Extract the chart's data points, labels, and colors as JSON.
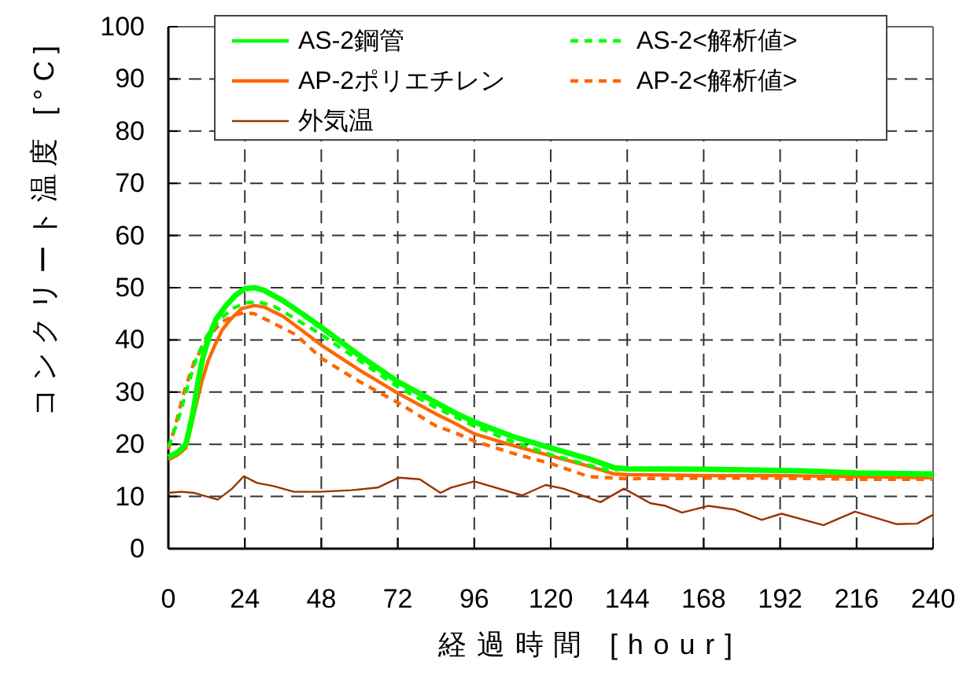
{
  "chart_data": {
    "type": "line",
    "xlabel": "経過時間 [hour]",
    "ylabel": "コンクリート温度 [°C]",
    "xlim": [
      0,
      240
    ],
    "xticks": [
      0,
      24,
      48,
      72,
      96,
      120,
      144,
      168,
      192,
      216,
      240
    ],
    "ylim": [
      0,
      100
    ],
    "yticks": [
      0,
      10,
      20,
      30,
      40,
      50,
      60,
      70,
      80,
      90,
      100
    ],
    "grid": true,
    "legend": "top",
    "series": [
      {
        "name": "AS-2鋼管",
        "color": "#00ff00",
        "line_style": "solid",
        "x": [
          0,
          3,
          5.5,
          7,
          8,
          9.6,
          11,
          13,
          15,
          18,
          21,
          24,
          27,
          30,
          36,
          42,
          48,
          60,
          72,
          84,
          90,
          96,
          108,
          120,
          132,
          140,
          144,
          168,
          192,
          204,
          216,
          240
        ],
        "values": [
          17.5,
          18.5,
          20,
          24,
          27,
          33,
          37,
          41,
          44,
          46.5,
          48.5,
          49.8,
          50,
          49.5,
          47.5,
          45,
          42.4,
          37,
          32,
          28,
          26,
          24.3,
          21.5,
          19.3,
          17.2,
          15.5,
          15.3,
          15.2,
          15,
          14.8,
          14.5,
          14.3
        ]
      },
      {
        "name": "AS-2<解析値>",
        "color": "#00ff00",
        "line_style": "dashed",
        "x": [
          0,
          3,
          6.4,
          9,
          12.2,
          16.3,
          20,
          24.5,
          28,
          33,
          40,
          48,
          60,
          72,
          84,
          96,
          108,
          120,
          132,
          138,
          144,
          168,
          192,
          216,
          240
        ],
        "values": [
          19.5,
          24.5,
          31.8,
          36.8,
          40.9,
          43.9,
          46,
          47.1,
          47.3,
          46.5,
          44,
          41,
          36,
          31,
          27,
          23.5,
          20.5,
          18,
          16,
          15,
          15.3,
          15.3,
          15,
          14.5,
          14
        ]
      },
      {
        "name": "AP-2ポリエチレン",
        "color": "#ff6600",
        "line_style": "solid",
        "x": [
          0,
          3,
          5.5,
          7,
          8.9,
          10.5,
          12.5,
          14.6,
          17,
          19.6,
          23,
          27,
          30,
          36,
          42,
          48,
          60,
          72,
          84,
          90,
          96,
          108,
          120,
          132,
          140,
          144,
          168,
          192,
          216,
          240
        ],
        "values": [
          17,
          18,
          19.3,
          23,
          28,
          32,
          36,
          39,
          42,
          44,
          46,
          46.6,
          46.3,
          44.5,
          41.8,
          39,
          34.2,
          29.8,
          25.8,
          24,
          22,
          19.8,
          17.8,
          15.8,
          14.3,
          14.2,
          14,
          14,
          13.8,
          13.6
        ]
      },
      {
        "name": "AP-2<解析値>",
        "color": "#ff6600",
        "line_style": "dashed",
        "x": [
          0,
          2.3,
          4.8,
          8.1,
          12.9,
          17,
          21,
          24,
          27,
          32,
          40,
          48,
          60,
          72,
          84,
          90,
          96,
          108,
          120,
          132,
          144,
          168,
          192,
          216,
          240
        ],
        "values": [
          19,
          23.8,
          29.8,
          35.8,
          40.9,
          43.5,
          44.8,
          45.2,
          45,
          43.5,
          41,
          36.5,
          32,
          28,
          23.5,
          22.2,
          20.6,
          18.3,
          16.3,
          13.8,
          13.4,
          13.5,
          13.5,
          13.3,
          13.3
        ]
      },
      {
        "name": "外気温",
        "color": "#993300",
        "line_style": "solid",
        "x": [
          0,
          4,
          8,
          12,
          15.5,
          20,
          23.7,
          27.8,
          33,
          39.4,
          47.5,
          57.5,
          65.7,
          72.3,
          78.9,
          85.4,
          88.7,
          96,
          111,
          118.4,
          124,
          135.6,
          143,
          151.3,
          156,
          161.2,
          169.4,
          177.6,
          186.2,
          192.4,
          205.6,
          215.5,
          228.6,
          235,
          240
        ],
        "values": [
          10.7,
          10.9,
          10.7,
          10,
          9.4,
          11.5,
          13.9,
          12.6,
          12,
          10.9,
          10.9,
          11.2,
          11.7,
          13.6,
          13.3,
          10.7,
          11.7,
          12.9,
          10.2,
          12.2,
          11.5,
          8.9,
          11.5,
          8.7,
          8.2,
          6.9,
          8.2,
          7.5,
          5.5,
          6.7,
          4.5,
          7.1,
          4.7,
          4.8,
          6.5
        ]
      }
    ]
  }
}
